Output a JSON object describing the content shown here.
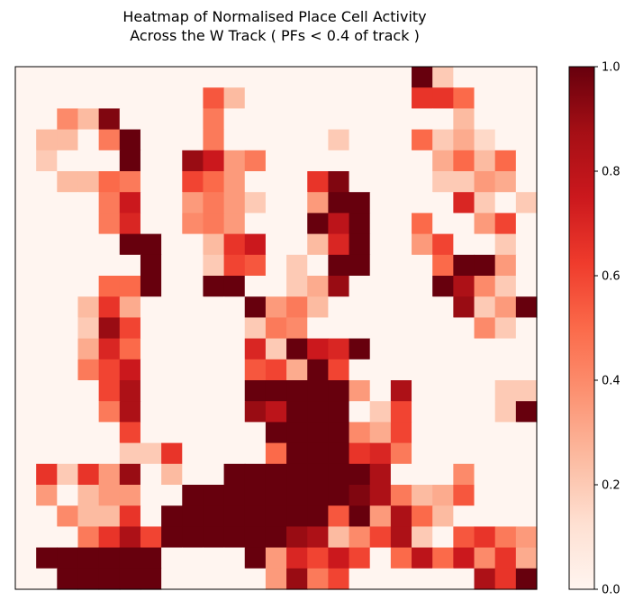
{
  "chart_data": {
    "type": "heatmap",
    "title": [
      "Heatmap of Normalised Place Cell Activity",
      "Across the W Track ( PFs < 0.4 of track )"
    ],
    "xlabel": "",
    "ylabel": "",
    "grid": false,
    "colormap": "Reds",
    "colormap_stops": [
      "#fff5f0",
      "#fee0d2",
      "#fcbba1",
      "#fc9272",
      "#fb6a4a",
      "#ef3b2c",
      "#cb181d",
      "#a50f15",
      "#67000d"
    ],
    "colorbar": {
      "range": [
        0.0,
        1.0
      ],
      "ticks": [
        0.0,
        0.2,
        0.4,
        0.6,
        0.8,
        1.0
      ],
      "tick_labels": [
        "0.0",
        "0.2",
        "0.4",
        "0.6",
        "0.8",
        "1.0"
      ],
      "placement": "right"
    },
    "rows": 25,
    "cols": 25,
    "values": [
      [
        0,
        0,
        0,
        0,
        0,
        0,
        0,
        0,
        0,
        0,
        0,
        0,
        0,
        0,
        0,
        0,
        0,
        0,
        0,
        1.0,
        0.2,
        0,
        0,
        0,
        0
      ],
      [
        0,
        0,
        0,
        0,
        0,
        0,
        0,
        0,
        0,
        0.55,
        0.25,
        0,
        0,
        0,
        0,
        0,
        0,
        0,
        0,
        0.65,
        0.65,
        0.5,
        0,
        0,
        0
      ],
      [
        0,
        0,
        0.4,
        0.25,
        0.95,
        0,
        0,
        0,
        0,
        0.45,
        0,
        0,
        0,
        0,
        0,
        0,
        0,
        0,
        0,
        0,
        0,
        0.25,
        0,
        0,
        0
      ],
      [
        0,
        0.25,
        0.25,
        0,
        0.45,
        1.0,
        0,
        0,
        0,
        0.45,
        0,
        0,
        0,
        0,
        0,
        0.2,
        0,
        0,
        0,
        0.5,
        0.2,
        0.3,
        0.15,
        0,
        0
      ],
      [
        0,
        0.2,
        0,
        0,
        0,
        1.0,
        0,
        0,
        0.9,
        0.75,
        0.35,
        0.45,
        0,
        0,
        0,
        0,
        0,
        0,
        0,
        0,
        0.3,
        0.5,
        0.25,
        0.5,
        0
      ],
      [
        0,
        0,
        0.25,
        0.25,
        0.5,
        0.45,
        0,
        0,
        0.6,
        0.5,
        0.35,
        0,
        0,
        0,
        0.65,
        0.95,
        0,
        0,
        0,
        0,
        0.2,
        0.2,
        0.35,
        0.3,
        0
      ],
      [
        0,
        0,
        0,
        0,
        0.45,
        0.75,
        0,
        0,
        0.35,
        0.45,
        0.35,
        0.2,
        0,
        0,
        0.35,
        1.0,
        1.0,
        0,
        0,
        0,
        0,
        0.7,
        0.2,
        0,
        0.2
      ],
      [
        0,
        0,
        0,
        0,
        0.45,
        0.7,
        0,
        0,
        0.4,
        0.45,
        0.35,
        0,
        0,
        0,
        1.0,
        0.8,
        1.0,
        0,
        0,
        0.5,
        0,
        0,
        0.35,
        0.6,
        0
      ],
      [
        0,
        0,
        0,
        0,
        0,
        1.0,
        1.0,
        0,
        0,
        0.25,
        0.65,
        0.75,
        0,
        0,
        0.25,
        0.7,
        1.0,
        0,
        0,
        0.35,
        0.6,
        0,
        0,
        0.2,
        0
      ],
      [
        0,
        0,
        0,
        0,
        0,
        0,
        1.0,
        0,
        0,
        0.2,
        0.6,
        0.55,
        0,
        0.2,
        0,
        1.0,
        1.0,
        0,
        0,
        0,
        0.5,
        1.0,
        1.0,
        0.35,
        0
      ],
      [
        0,
        0,
        0,
        0,
        0.5,
        0.5,
        1.0,
        0,
        0,
        1.0,
        1.0,
        0,
        0,
        0.2,
        0.3,
        0.9,
        0,
        0,
        0,
        0,
        1.0,
        0.85,
        0.4,
        0.2,
        0
      ],
      [
        0,
        0,
        0,
        0.25,
        0.65,
        0.3,
        0,
        0,
        0,
        0,
        0,
        1.0,
        0.35,
        0.45,
        0.25,
        0,
        0,
        0,
        0,
        0,
        0,
        0.9,
        0.2,
        0.35,
        1.0
      ],
      [
        0,
        0,
        0,
        0.2,
        0.9,
        0.6,
        0,
        0,
        0,
        0,
        0,
        0.2,
        0.45,
        0.4,
        0,
        0,
        0,
        0,
        0,
        0,
        0,
        0,
        0.4,
        0.2,
        0
      ],
      [
        0,
        0,
        0,
        0.3,
        0.7,
        0.5,
        0,
        0,
        0,
        0,
        0,
        0.7,
        0.2,
        1.0,
        0.75,
        0.7,
        1.0,
        0,
        0,
        0,
        0,
        0,
        0,
        0,
        0
      ],
      [
        0,
        0,
        0,
        0.45,
        0.6,
        0.75,
        0,
        0,
        0,
        0,
        0,
        0.55,
        0.6,
        0.3,
        1.0,
        0.6,
        0,
        0,
        0,
        0,
        0,
        0,
        0,
        0,
        0
      ],
      [
        0,
        0,
        0,
        0,
        0.6,
        0.85,
        0,
        0,
        0,
        0,
        0,
        1.0,
        1.0,
        1.0,
        1.0,
        1.0,
        0.35,
        0,
        0.85,
        0,
        0,
        0,
        0,
        0.2,
        0.2
      ],
      [
        0,
        0,
        0,
        0,
        0.45,
        0.85,
        0,
        0,
        0,
        0,
        0,
        0.9,
        0.8,
        1.0,
        1.0,
        1.0,
        0,
        0.2,
        0.6,
        0,
        0,
        0,
        0,
        0.2,
        1.0
      ],
      [
        0,
        0,
        0,
        0,
        0,
        0.6,
        0,
        0,
        0,
        0,
        0,
        0,
        1.0,
        1.0,
        1.0,
        1.0,
        0.4,
        0.3,
        0.6,
        0,
        0,
        0,
        0,
        0,
        0
      ],
      [
        0,
        0,
        0,
        0,
        0,
        0.2,
        0.2,
        0.65,
        0,
        0,
        0,
        0,
        0.5,
        1.0,
        1.0,
        1.0,
        0.65,
        0.7,
        0.45,
        0,
        0,
        0,
        0,
        0,
        0
      ],
      [
        0,
        0.65,
        0.2,
        0.65,
        0.35,
        0.9,
        0,
        0.25,
        0,
        0,
        1.0,
        1.0,
        1.0,
        1.0,
        1.0,
        1.0,
        1.0,
        0.85,
        0,
        0,
        0,
        0.4,
        0,
        0,
        0
      ],
      [
        0,
        0.35,
        0,
        0.25,
        0.35,
        0.35,
        0,
        0,
        1.0,
        1.0,
        1.0,
        1.0,
        1.0,
        1.0,
        1.0,
        1.0,
        0.95,
        0.85,
        0.45,
        0.25,
        0.3,
        0.55,
        0,
        0,
        0
      ],
      [
        0,
        0,
        0.4,
        0.25,
        0.25,
        0.65,
        0,
        1.0,
        1.0,
        1.0,
        1.0,
        1.0,
        1.0,
        1.0,
        1.0,
        0.55,
        1.0,
        0.35,
        0.85,
        0.5,
        0.25,
        0,
        0,
        0,
        0
      ],
      [
        0,
        0,
        0,
        0.45,
        0.65,
        0.85,
        0.6,
        1.0,
        1.0,
        1.0,
        1.0,
        1.0,
        1.0,
        0.9,
        0.85,
        0.25,
        0.4,
        0.6,
        0.85,
        0.2,
        0,
        0.55,
        0.65,
        0.45,
        0.35
      ],
      [
        0,
        1.0,
        1.0,
        1.0,
        1.0,
        1.0,
        1.0,
        0,
        0,
        0,
        0,
        1.0,
        0.35,
        0.7,
        0.6,
        0.75,
        0.6,
        0,
        0.5,
        0.8,
        0.5,
        0.75,
        0.4,
        0.65,
        0.3
      ],
      [
        0,
        0,
        1.0,
        1.0,
        1.0,
        1.0,
        1.0,
        0,
        0,
        0,
        0,
        0,
        0.35,
        0.9,
        0.45,
        0.6,
        0,
        0,
        0,
        0,
        0,
        0,
        0.85,
        0.65,
        1.0
      ]
    ]
  }
}
